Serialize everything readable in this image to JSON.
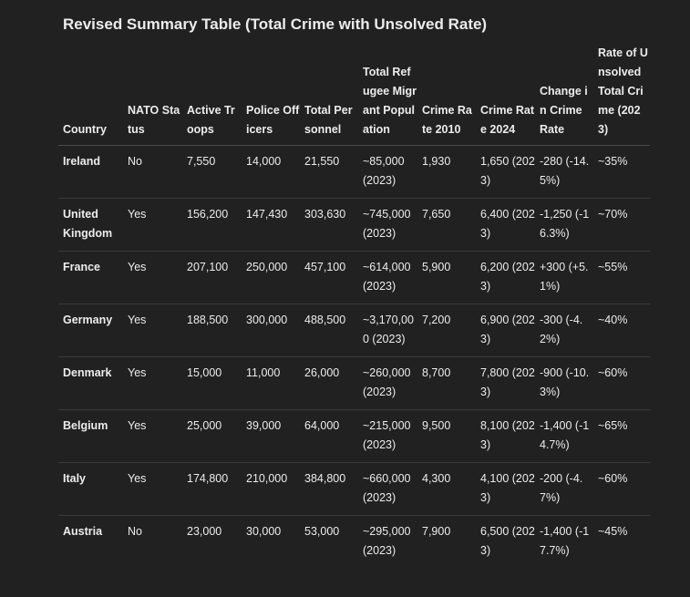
{
  "title": "Revised Summary Table (Total Crime with Unsolved Rate)",
  "table": {
    "headers": [
      "Country",
      "NATO Status",
      "Active Troops",
      "Police Officers",
      "Total Personnel",
      "Total Refugee Migrant Population",
      "Crime Rate 2010",
      "Crime Rate 2024",
      "Change in Crime Rate",
      "Rate of Unsolved Total Crime (2023)"
    ],
    "rows": [
      [
        "Ireland",
        "No",
        "7,550",
        "14,000",
        "21,550",
        "~85,000 (2023)",
        "1,930",
        "1,650 (2023)",
        "-280 (-14.5%)",
        "~35%"
      ],
      [
        "United Kingdom",
        "Yes",
        "156,200",
        "147,430",
        "303,630",
        "~745,000 (2023)",
        "7,650",
        "6,400 (2023)",
        "-1,250 (-16.3%)",
        "~70%"
      ],
      [
        "France",
        "Yes",
        "207,100",
        "250,000",
        "457,100",
        "~614,000 (2023)",
        "5,900",
        "6,200 (2023)",
        "+300 (+5.1%)",
        "~55%"
      ],
      [
        "Germany",
        "Yes",
        "188,500",
        "300,000",
        "488,500",
        "~3,170,000 (2023)",
        "7,200",
        "6,900 (2023)",
        "-300 (-4.2%)",
        "~40%"
      ],
      [
        "Denmark",
        "Yes",
        "15,000",
        "11,000",
        "26,000",
        "~260,000 (2023)",
        "8,700",
        "7,800 (2023)",
        "-900 (-10.3%)",
        "~60%"
      ],
      [
        "Belgium",
        "Yes",
        "25,000",
        "39,000",
        "64,000",
        "~215,000 (2023)",
        "9,500",
        "8,100 (2023)",
        "-1,400 (-14.7%)",
        "~65%"
      ],
      [
        "Italy",
        "Yes",
        "174,800",
        "210,000",
        "384,800",
        "~660,000 (2023)",
        "4,300",
        "4,100 (2023)",
        "-200 (-4.7%)",
        "~60%"
      ],
      [
        "Austria",
        "No",
        "23,000",
        "30,000",
        "53,000",
        "~295,000 (2023)",
        "7,900",
        "6,500 (2023)",
        "-1,400 (-17.7%)",
        "~45%"
      ]
    ]
  }
}
